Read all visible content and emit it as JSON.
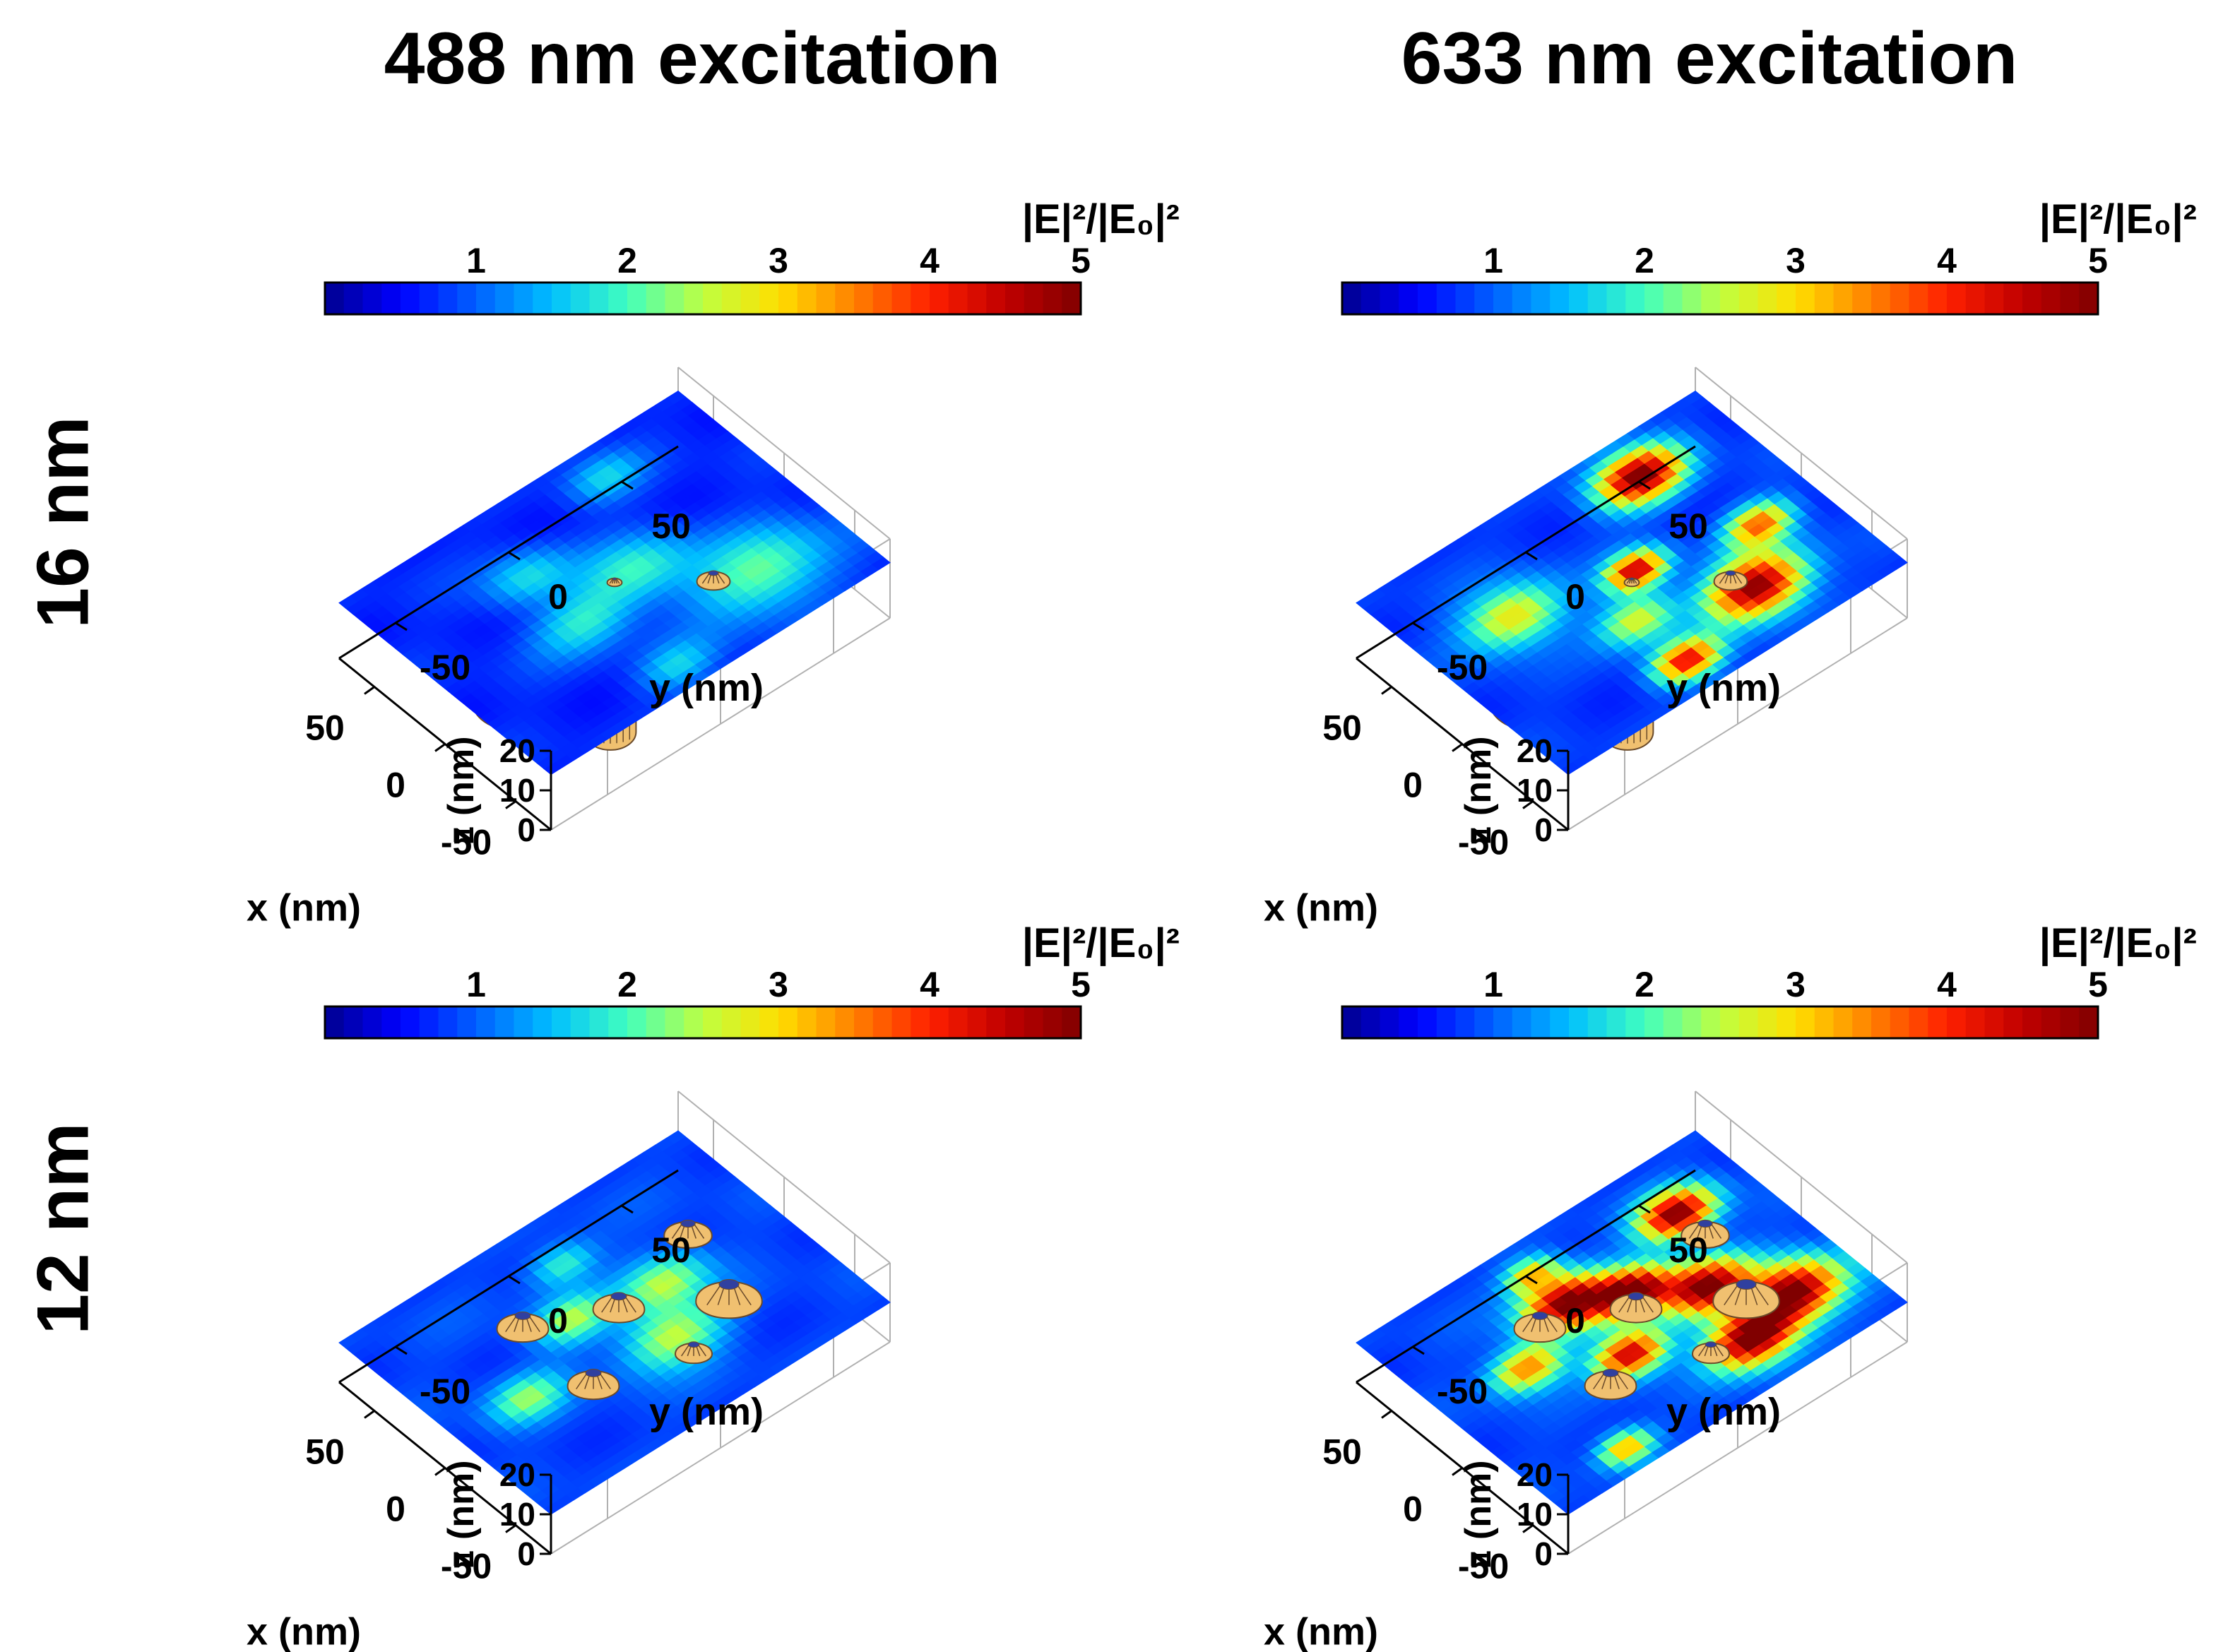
{
  "figure": {
    "column_titles": [
      "488 nm excitation",
      "633 nm excitation"
    ],
    "row_titles": [
      "16 nm",
      "12 nm"
    ]
  },
  "colors": {
    "jet": [
      "#00008f",
      "#0000ff",
      "#0060ff",
      "#00bfff",
      "#40ffbf",
      "#bfff40",
      "#ffdf00",
      "#ff8000",
      "#ff2000",
      "#c00000",
      "#800000"
    ],
    "dome_fill": "#f0c070",
    "dome_line": "#6a4a2a",
    "axis": "#000000",
    "grid": "#b0b0b0"
  },
  "chart_data": [
    {
      "type": "heatmap",
      "title": "488 nm excitation — 16 nm",
      "colorbar": {
        "label": "|E|²/|E₀|²",
        "min": 0,
        "max": 5,
        "ticks": [
          1,
          2,
          3,
          4,
          5
        ]
      },
      "xlabel": "x (nm)",
      "ylabel": "y (nm)",
      "zlabel": "z (nm)",
      "xticks": [
        -50,
        0,
        50
      ],
      "yticks": [
        -50,
        0,
        50
      ],
      "zticks": [
        0,
        10,
        20
      ],
      "xlim": [
        -75,
        75
      ],
      "ylim": [
        -75,
        75
      ],
      "zlim": [
        0,
        20
      ],
      "plane_z": 14,
      "particles": [
        {
          "x": 40,
          "y": -40,
          "r": 24,
          "top": "below"
        },
        {
          "x": 0,
          "y": -45,
          "r": 22,
          "top": "below"
        },
        {
          "x": -45,
          "y": -30,
          "r": 14,
          "top": "below"
        },
        {
          "x": 35,
          "y": 40,
          "r": 16,
          "top": "below"
        },
        {
          "x": -30,
          "y": 25,
          "r": 9,
          "top": "above"
        },
        {
          "x": 0,
          "y": 0,
          "r": 4,
          "top": "above"
        }
      ],
      "hotspots": [
        {
          "x": -40,
          "y": 40,
          "r": 25,
          "v": 2.2
        },
        {
          "x": 0,
          "y": 10,
          "r": 20,
          "v": 1.9
        },
        {
          "x": -10,
          "y": -20,
          "r": 18,
          "v": 1.8
        },
        {
          "x": 30,
          "y": -20,
          "r": 16,
          "v": 1.7
        },
        {
          "x": -60,
          "y": -10,
          "r": 14,
          "v": 1.6
        },
        {
          "x": 55,
          "y": 30,
          "r": 14,
          "v": 1.6
        }
      ],
      "base": 0.7
    },
    {
      "type": "heatmap",
      "title": "633 nm excitation — 16 nm",
      "colorbar": {
        "label": "|E|²/|E₀|²",
        "min": 0,
        "max": 5,
        "ticks": [
          1,
          2,
          3,
          4,
          5
        ]
      },
      "xlabel": "x (nm)",
      "ylabel": "y (nm)",
      "zlabel": "z (nm)",
      "xticks": [
        -50,
        0,
        50
      ],
      "yticks": [
        -50,
        0,
        50
      ],
      "zticks": [
        0,
        10,
        20
      ],
      "xlim": [
        -75,
        75
      ],
      "ylim": [
        -75,
        75
      ],
      "zlim": [
        0,
        20
      ],
      "plane_z": 14,
      "particles": [
        {
          "x": 40,
          "y": -40,
          "r": 24,
          "top": "below"
        },
        {
          "x": 0,
          "y": -45,
          "r": 22,
          "top": "below"
        },
        {
          "x": -45,
          "y": -30,
          "r": 14,
          "top": "below"
        },
        {
          "x": 35,
          "y": 40,
          "r": 16,
          "top": "below"
        },
        {
          "x": -30,
          "y": 25,
          "r": 9,
          "top": "above"
        },
        {
          "x": 0,
          "y": 0,
          "r": 4,
          "top": "above"
        }
      ],
      "hotspots": [
        {
          "x": -40,
          "y": 30,
          "r": 18,
          "v": 5.0
        },
        {
          "x": -55,
          "y": -10,
          "r": 12,
          "v": 4.2
        },
        {
          "x": 5,
          "y": 5,
          "r": 11,
          "v": 4.5
        },
        {
          "x": -10,
          "y": 50,
          "r": 12,
          "v": 3.6
        },
        {
          "x": 50,
          "y": 35,
          "r": 16,
          "v": 5.0
        },
        {
          "x": 20,
          "y": -40,
          "r": 18,
          "v": 3.0
        },
        {
          "x": -20,
          "y": -10,
          "r": 14,
          "v": 2.8
        }
      ],
      "base": 0.8
    },
    {
      "type": "heatmap",
      "title": "488 nm excitation — 12 nm",
      "colorbar": {
        "label": "|E|²/|E₀|²",
        "min": 0,
        "max": 5,
        "ticks": [
          1,
          2,
          3,
          4,
          5
        ]
      },
      "xlabel": "x (nm)",
      "ylabel": "y (nm)",
      "zlabel": "z (nm)",
      "xticks": [
        -50,
        0,
        50
      ],
      "yticks": [
        -50,
        0,
        50
      ],
      "zticks": [
        0,
        10,
        20
      ],
      "xlim": [
        -75,
        75
      ],
      "ylim": [
        -75,
        75
      ],
      "zlim": [
        0,
        20
      ],
      "plane_z": 10,
      "particles": [
        {
          "x": 40,
          "y": -40,
          "r": 22,
          "top": "below"
        },
        {
          "x": 0,
          "y": -45,
          "r": 18,
          "top": "below"
        },
        {
          "x": -45,
          "y": -30,
          "r": 12,
          "top": "below"
        },
        {
          "x": 35,
          "y": 40,
          "r": 14,
          "top": "below"
        },
        {
          "x": -40,
          "y": 10,
          "r": 10,
          "top": "above"
        },
        {
          "x": -25,
          "y": 35,
          "r": 18,
          "top": "above"
        },
        {
          "x": 5,
          "y": 5,
          "r": 14,
          "top": "above"
        },
        {
          "x": 20,
          "y": 45,
          "r": 13,
          "top": "above"
        },
        {
          "x": 25,
          "y": -25,
          "r": 14,
          "top": "above"
        },
        {
          "x": -25,
          "y": -25,
          "r": 14,
          "top": "above"
        }
      ],
      "hotspots": [
        {
          "x": -25,
          "y": 10,
          "r": 18,
          "v": 2.6
        },
        {
          "x": 5,
          "y": 25,
          "r": 16,
          "v": 2.5
        },
        {
          "x": 15,
          "y": -10,
          "r": 14,
          "v": 2.4
        },
        {
          "x": -10,
          "y": -45,
          "r": 14,
          "v": 2.3
        },
        {
          "x": 45,
          "y": 5,
          "r": 12,
          "v": 2.0
        }
      ],
      "base": 0.85
    },
    {
      "type": "heatmap",
      "title": "633 nm excitation — 12 nm",
      "colorbar": {
        "label": "|E|²/|E₀|²",
        "min": 0,
        "max": 5,
        "ticks": [
          1,
          2,
          3,
          4,
          5
        ]
      },
      "xlabel": "x (nm)",
      "ylabel": "y (nm)",
      "zlabel": "z (nm)",
      "xticks": [
        -50,
        0,
        50
      ],
      "yticks": [
        -50,
        0,
        50
      ],
      "zticks": [
        0,
        10,
        20
      ],
      "xlim": [
        -75,
        75
      ],
      "ylim": [
        -75,
        75
      ],
      "zlim": [
        0,
        20
      ],
      "plane_z": 10,
      "particles": [
        {
          "x": 40,
          "y": -40,
          "r": 22,
          "top": "below"
        },
        {
          "x": 0,
          "y": -45,
          "r": 18,
          "top": "below"
        },
        {
          "x": -45,
          "y": -30,
          "r": 12,
          "top": "below"
        },
        {
          "x": 35,
          "y": 40,
          "r": 14,
          "top": "below"
        },
        {
          "x": -40,
          "y": 10,
          "r": 10,
          "top": "above"
        },
        {
          "x": -25,
          "y": 35,
          "r": 18,
          "top": "above"
        },
        {
          "x": 5,
          "y": 5,
          "r": 14,
          "top": "above"
        },
        {
          "x": 20,
          "y": 45,
          "r": 13,
          "top": "above"
        },
        {
          "x": 25,
          "y": -25,
          "r": 14,
          "top": "above"
        },
        {
          "x": -25,
          "y": -25,
          "r": 14,
          "top": "above"
        }
      ],
      "hotspots": [
        {
          "x": -45,
          "y": 25,
          "r": 16,
          "v": 5.0
        },
        {
          "x": -35,
          "y": 50,
          "r": 18,
          "v": 5.0
        },
        {
          "x": -5,
          "y": 30,
          "r": 16,
          "v": 5.0
        },
        {
          "x": 15,
          "y": 10,
          "r": 14,
          "v": 5.0
        },
        {
          "x": 30,
          "y": -10,
          "r": 16,
          "v": 5.0
        },
        {
          "x": 40,
          "y": 45,
          "r": 14,
          "v": 5.0
        },
        {
          "x": -15,
          "y": -10,
          "r": 13,
          "v": 4.6
        },
        {
          "x": 10,
          "y": -40,
          "r": 13,
          "v": 3.6
        },
        {
          "x": -60,
          "y": -40,
          "r": 10,
          "v": 3.4
        },
        {
          "x": 55,
          "y": -10,
          "r": 10,
          "v": 3.0
        }
      ],
      "base": 0.85
    }
  ]
}
